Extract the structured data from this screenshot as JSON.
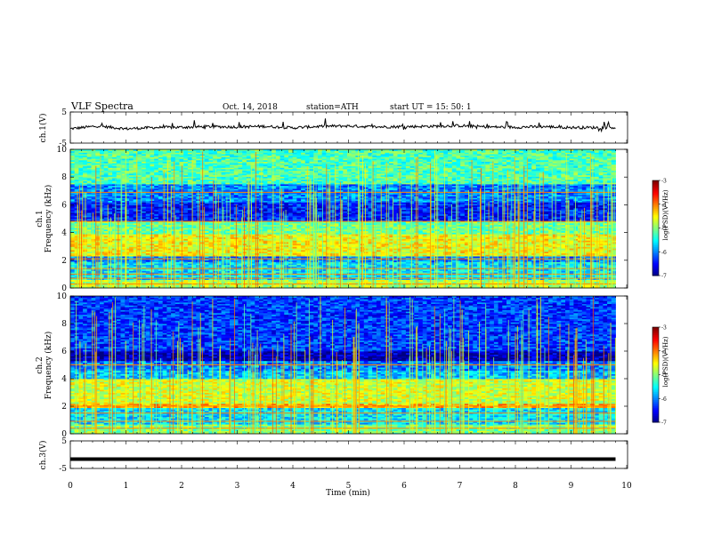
{
  "header": {
    "title": "VLF  Spectra",
    "date": "Oct. 14, 2018",
    "station": "station=ATH",
    "start": "start  UT  =    15: 50: 1"
  },
  "chart_data": [
    {
      "type": "line",
      "panel": "ch1-waveform",
      "ylabel": "ch.1(V)",
      "yticks": [
        "5",
        "-5"
      ],
      "ylim": [
        -5,
        5
      ],
      "x": [
        0,
        0.5,
        1,
        1.5,
        2,
        2.5,
        3,
        3.5,
        4,
        4.5,
        5,
        5.5,
        6,
        6.5,
        7,
        7.5,
        8,
        8.5,
        9,
        9.5,
        9.8
      ],
      "values": [
        -0.4,
        0.5,
        -0.4,
        0.0,
        0.1,
        0.3,
        0.2,
        0.4,
        -0.1,
        0.4,
        0.5,
        0.2,
        0.3,
        0.4,
        0.6,
        0.2,
        0.1,
        0.3,
        0.0,
        0.0,
        0.0
      ],
      "color": "#000000"
    },
    {
      "type": "heatmap",
      "panel": "ch1-spectrogram",
      "ylabel": "ch.1",
      "ylabel2": "Frequency  (kHz)",
      "yticks": [
        "0",
        "2",
        "4",
        "6",
        "8",
        "10"
      ],
      "ylim": [
        0,
        10
      ],
      "bands": [
        {
          "f0": 0.0,
          "f1": 0.6,
          "level": 0.55
        },
        {
          "f0": 0.6,
          "f1": 1.9,
          "level": 0.35
        },
        {
          "f0": 1.9,
          "f1": 2.3,
          "level": 0.25
        },
        {
          "f0": 2.3,
          "f1": 3.9,
          "level": 0.62
        },
        {
          "f0": 3.9,
          "f1": 4.8,
          "level": 0.48
        },
        {
          "f0": 4.8,
          "f1": 6.2,
          "level": 0.15
        },
        {
          "f0": 6.2,
          "f1": 7.5,
          "level": 0.25
        },
        {
          "f0": 7.5,
          "f1": 10.0,
          "level": 0.45
        }
      ],
      "lines_khz": [
        0.3,
        0.7,
        1.0,
        1.4,
        2.1,
        4.8,
        6.9
      ],
      "colorbar": {
        "label": "log(PSD)(V²/Hz)",
        "ticks": [
          "-3",
          "-4",
          "-5",
          "-6",
          "-7"
        ],
        "range": [
          -7,
          -3
        ]
      }
    },
    {
      "type": "heatmap",
      "panel": "ch2-spectrogram",
      "ylabel": "ch.2",
      "ylabel2": "Frequency  (kHz)",
      "yticks": [
        "0",
        "2",
        "4",
        "6",
        "8",
        "10"
      ],
      "ylim": [
        0,
        10
      ],
      "bands": [
        {
          "f0": 0.0,
          "f1": 0.7,
          "level": 0.5
        },
        {
          "f0": 0.7,
          "f1": 1.9,
          "level": 0.35
        },
        {
          "f0": 1.9,
          "f1": 2.2,
          "level": 0.7
        },
        {
          "f0": 2.2,
          "f1": 4.0,
          "level": 0.58
        },
        {
          "f0": 4.0,
          "f1": 4.6,
          "level": 0.32
        },
        {
          "f0": 4.6,
          "f1": 5.3,
          "level": 0.25
        },
        {
          "f0": 5.3,
          "f1": 6.0,
          "level": 0.05
        },
        {
          "f0": 6.0,
          "f1": 10.0,
          "level": 0.18
        }
      ],
      "lines_khz": [
        0.4,
        0.9,
        1.5,
        2.0,
        5.0
      ],
      "colorbar": {
        "label": "log(PSD)(V²/Hz)",
        "ticks": [
          "-3",
          "-4",
          "-5",
          "-6",
          "-7"
        ],
        "range": [
          -7,
          -3
        ]
      }
    },
    {
      "type": "line",
      "panel": "ch3-waveform",
      "ylabel": "ch.3(V)",
      "yticks": [
        "5",
        "-5"
      ],
      "ylim": [
        -5,
        5
      ],
      "x": [
        0,
        9.8
      ],
      "values": [
        -1.6,
        -1.6
      ],
      "color": "#000000"
    }
  ],
  "xaxis": {
    "label": "Time  (min)",
    "ticks": [
      "0",
      "1",
      "2",
      "3",
      "4",
      "5",
      "6",
      "7",
      "8",
      "9",
      "10"
    ],
    "xlim": [
      0,
      10
    ]
  }
}
